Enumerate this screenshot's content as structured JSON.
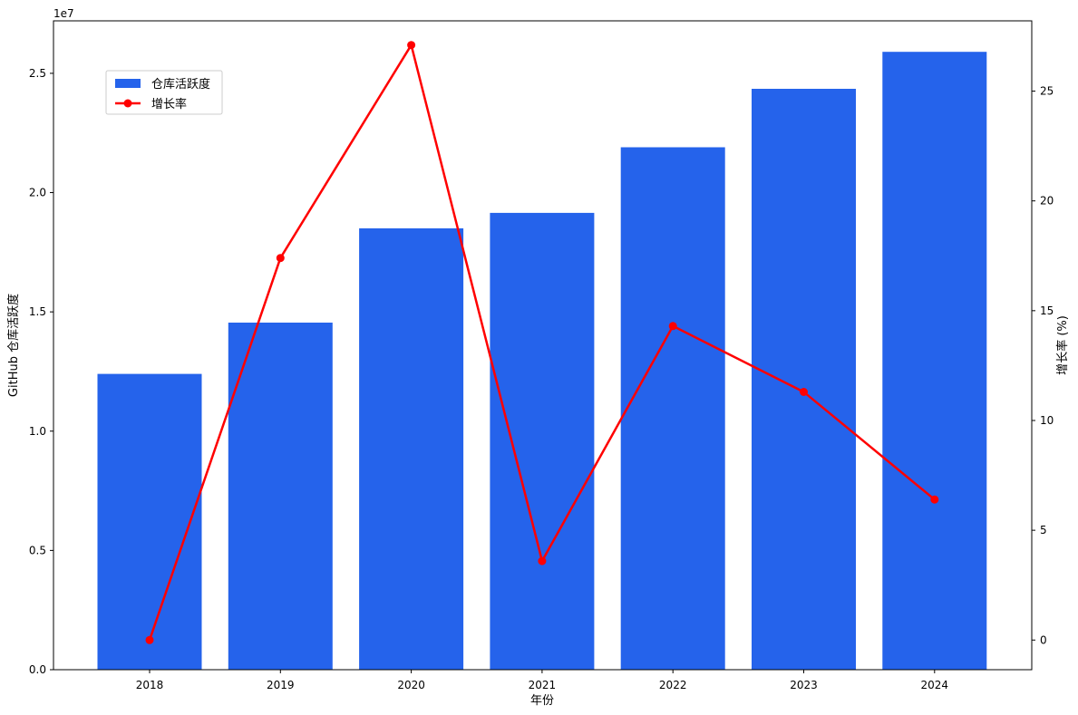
{
  "chart_data": {
    "type": "bar",
    "categories": [
      "2018",
      "2019",
      "2020",
      "2021",
      "2022",
      "2023",
      "2024"
    ],
    "series": [
      {
        "name": "仓库活跃度",
        "type": "bar",
        "axis": "left",
        "color": "#2563eb",
        "values": [
          12400000,
          14550000,
          18500000,
          19150000,
          21900000,
          24350000,
          25900000
        ]
      },
      {
        "name": "增长率",
        "type": "line",
        "axis": "right",
        "color": "#ff0000",
        "values": [
          0,
          17.4,
          27.1,
          3.6,
          14.3,
          11.3,
          6.4
        ]
      }
    ],
    "xlabel": "年份",
    "ylabel": "GitHub 仓库活跃度",
    "y2label": "增长率 (%)",
    "ylim": [
      0,
      27200000
    ],
    "y2lim": [
      -1.35,
      28.2
    ],
    "yticks": [
      0,
      5000000,
      10000000,
      15000000,
      20000000,
      25000000
    ],
    "ytick_labels": [
      "0.0",
      "0.5",
      "1.0",
      "1.5",
      "2.0",
      "2.5"
    ],
    "y_offset_label": "1e7",
    "y2ticks": [
      0,
      5,
      10,
      15,
      20,
      25
    ],
    "y2tick_labels": [
      "0",
      "5",
      "10",
      "15",
      "20",
      "25"
    ],
    "legend_position": "top-left",
    "grid": false
  }
}
